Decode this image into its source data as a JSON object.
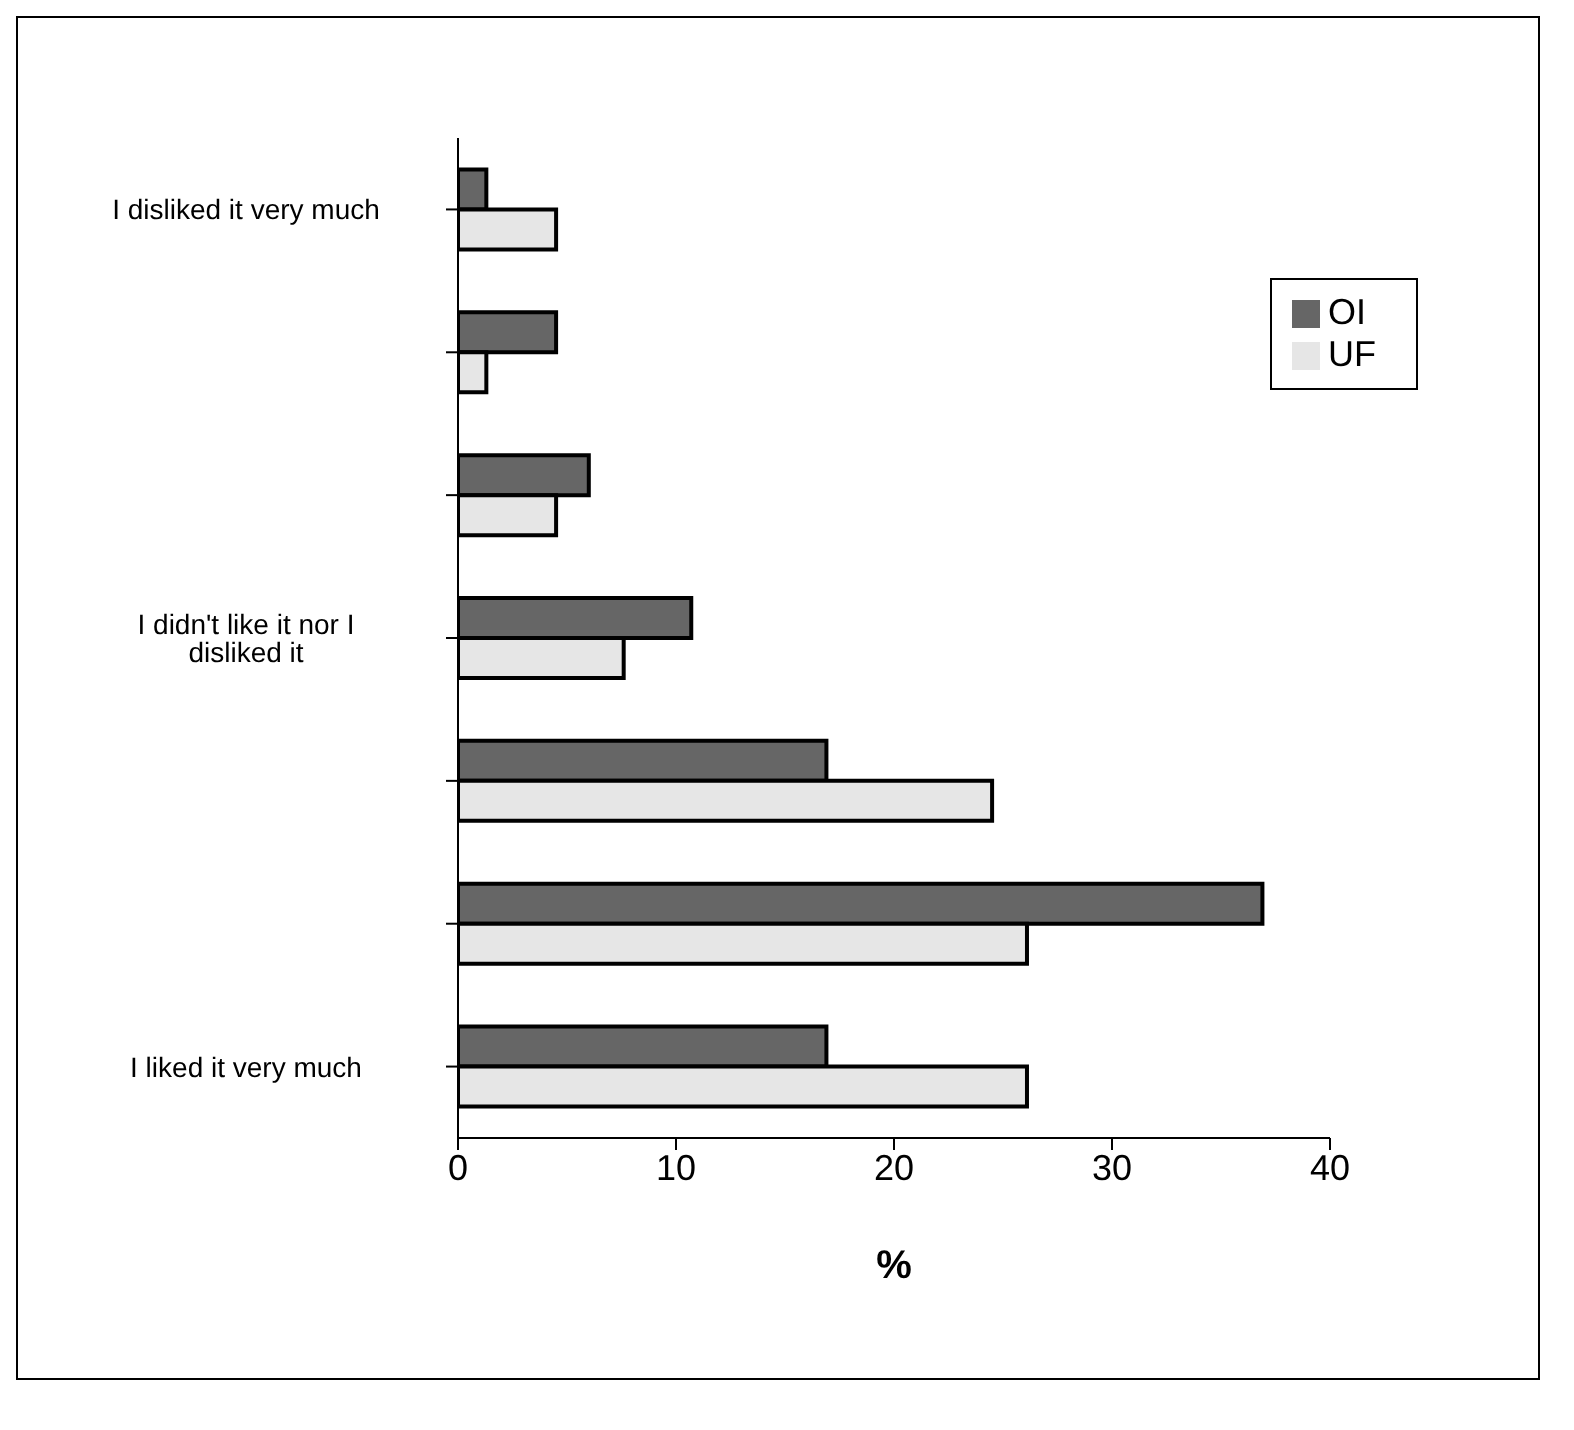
{
  "chart_data": {
    "type": "bar",
    "orientation": "horizontal",
    "categories": [
      "I disliked it very much",
      null,
      null,
      "I didn't like it nor I disliked it",
      null,
      null,
      "I liked it very much"
    ],
    "series": [
      {
        "name": "OI",
        "color": "#666666",
        "values": [
          1.3,
          4.5,
          6.0,
          10.7,
          16.9,
          36.9,
          16.9
        ]
      },
      {
        "name": "UF",
        "color": "#e6e6e6",
        "values": [
          4.5,
          1.3,
          4.5,
          7.6,
          24.5,
          26.1,
          26.1
        ]
      }
    ],
    "xlabel": "%",
    "xlim": [
      0,
      40
    ],
    "xticks": [
      0,
      10,
      20,
      30,
      40
    ],
    "legend": "right",
    "grid": false
  }
}
